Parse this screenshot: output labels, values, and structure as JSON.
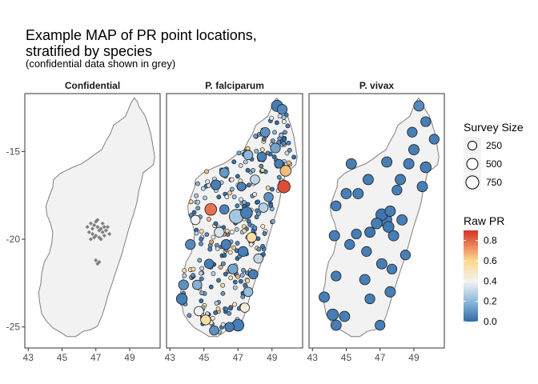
{
  "chart_data": {
    "type": "scatter",
    "title_lines": [
      "Example MAP of PR point locations,",
      "stratified by species"
    ],
    "subtitle": "(confidential data shown in grey)",
    "xlabel": "",
    "ylabel": "",
    "xlim": [
      42.8,
      50.8
    ],
    "ylim": [
      -26.2,
      -11.7
    ],
    "x_ticks": [
      43,
      45,
      47,
      49
    ],
    "x_tick_labels": [
      "43",
      "45",
      "47",
      "49"
    ],
    "y_ticks": [
      -15,
      -20,
      -25
    ],
    "y_tick_labels": [
      "-15",
      "-20",
      "-25"
    ],
    "grid": false,
    "panels": [
      {
        "label": "Confidential",
        "points": [
          [
            46.5,
            -19.3
          ],
          [
            46.7,
            -19.1
          ],
          [
            46.8,
            -19.4
          ],
          [
            46.9,
            -19.2
          ],
          [
            47.0,
            -19.0
          ],
          [
            47.1,
            -19.3
          ],
          [
            47.2,
            -19.5
          ],
          [
            47.3,
            -19.4
          ],
          [
            46.6,
            -19.6
          ],
          [
            46.8,
            -19.7
          ],
          [
            47.0,
            -19.8
          ],
          [
            47.2,
            -19.9
          ],
          [
            47.4,
            -19.6
          ],
          [
            47.5,
            -19.3
          ],
          [
            47.6,
            -19.5
          ],
          [
            47.1,
            -18.9
          ],
          [
            46.9,
            -19.9
          ],
          [
            47.3,
            -20.0
          ],
          [
            46.7,
            -20.0
          ],
          [
            47.5,
            -19.8
          ],
          [
            47.7,
            -19.3
          ],
          [
            47.4,
            -19.1
          ],
          [
            47.8,
            -19.7
          ],
          [
            47.0,
            -21.2
          ],
          [
            47.1,
            -21.4
          ],
          [
            47.2,
            -21.3
          ]
        ]
      },
      {
        "label": "P. falciparum",
        "points": [
          {
            "x": 46.9,
            "y": -18.7,
            "size": 800,
            "pr": 0.25
          },
          {
            "x": 47.5,
            "y": -18.5,
            "size": 500,
            "pr": 0.05
          },
          {
            "x": 49.7,
            "y": -17.0,
            "size": 600,
            "pr": 0.85
          },
          {
            "x": 45.4,
            "y": -18.3,
            "size": 500,
            "pr": 0.78
          },
          {
            "x": 49.8,
            "y": -16.1,
            "size": 400,
            "pr": 0.65
          },
          {
            "x": 47.8,
            "y": -19.9,
            "size": 300,
            "pr": 0.55
          },
          {
            "x": 49.3,
            "y": -12.4,
            "size": 450,
            "pr": 0.05
          },
          {
            "x": 49.6,
            "y": -12.6,
            "size": 300,
            "pr": 0.08
          },
          {
            "x": 48.6,
            "y": -13.9,
            "size": 250,
            "pr": 0.1
          },
          {
            "x": 49.2,
            "y": -14.8,
            "size": 300,
            "pr": 0.15
          },
          {
            "x": 48.4,
            "y": -15.3,
            "size": 250,
            "pr": 0.05
          },
          {
            "x": 47.6,
            "y": -15.2,
            "size": 250,
            "pr": 0.2
          },
          {
            "x": 48.0,
            "y": -16.6,
            "size": 250,
            "pr": 0.3
          },
          {
            "x": 47.2,
            "y": -17.0,
            "size": 200,
            "pr": 0.06
          },
          {
            "x": 46.2,
            "y": -16.2,
            "size": 250,
            "pr": 0.12
          },
          {
            "x": 45.7,
            "y": -16.9,
            "size": 300,
            "pr": 0.05
          },
          {
            "x": 44.5,
            "y": -18.9,
            "size": 250,
            "pr": 0.4
          },
          {
            "x": 44.2,
            "y": -20.3,
            "size": 300,
            "pr": 0.08
          },
          {
            "x": 43.8,
            "y": -22.6,
            "size": 300,
            "pr": 0.1
          },
          {
            "x": 43.7,
            "y": -23.4,
            "size": 400,
            "pr": 0.05
          },
          {
            "x": 44.6,
            "y": -22.6,
            "size": 250,
            "pr": 0.18
          },
          {
            "x": 44.7,
            "y": -24.1,
            "size": 250,
            "pr": 0.4
          },
          {
            "x": 45.1,
            "y": -24.6,
            "size": 300,
            "pr": 0.55
          },
          {
            "x": 45.6,
            "y": -25.2,
            "size": 250,
            "pr": 0.1
          },
          {
            "x": 46.5,
            "y": -25.0,
            "size": 250,
            "pr": 0.05
          },
          {
            "x": 47.0,
            "y": -24.9,
            "size": 500,
            "pr": 0.05
          },
          {
            "x": 47.6,
            "y": -23.0,
            "size": 250,
            "pr": 0.22
          },
          {
            "x": 47.9,
            "y": -22.0,
            "size": 250,
            "pr": 0.05
          },
          {
            "x": 48.2,
            "y": -21.1,
            "size": 250,
            "pr": 0.3
          },
          {
            "x": 46.3,
            "y": -20.3,
            "size": 300,
            "pr": 0.05
          },
          {
            "x": 45.9,
            "y": -19.6,
            "size": 300,
            "pr": 0.35
          },
          {
            "x": 46.2,
            "y": -18.3,
            "size": 250,
            "pr": 0.06
          },
          {
            "x": 48.5,
            "y": -18.2,
            "size": 250,
            "pr": 0.28
          },
          {
            "x": 48.8,
            "y": -17.6,
            "size": 250,
            "pr": 0.1
          },
          {
            "x": 49.4,
            "y": -15.7,
            "size": 200,
            "pr": 0.05
          },
          {
            "x": 46.7,
            "y": -21.7,
            "size": 300,
            "pr": 0.15
          },
          {
            "x": 45.3,
            "y": -21.4,
            "size": 250,
            "pr": 0.05
          },
          {
            "x": 47.3,
            "y": -20.7,
            "size": 300,
            "pr": 0.05
          },
          {
            "x": 47.4,
            "y": -23.9,
            "size": 250,
            "pr": 0.45
          }
        ],
        "small_points_count": 300
      },
      {
        "label": "P. vivax",
        "points": [
          {
            "x": 47.3,
            "y": -18.9,
            "size": 700,
            "pr": 0.05
          },
          {
            "x": 47.1,
            "y": -18.6,
            "size": 500,
            "pr": 0.03
          },
          {
            "x": 46.8,
            "y": -19.1,
            "size": 400,
            "pr": 0.05
          },
          {
            "x": 47.5,
            "y": -19.3,
            "size": 400,
            "pr": 0.04
          },
          {
            "x": 47.6,
            "y": -18.4,
            "size": 350,
            "pr": 0.05
          },
          {
            "x": 46.4,
            "y": -19.6,
            "size": 350,
            "pr": 0.03
          },
          {
            "x": 47.8,
            "y": -19.8,
            "size": 350,
            "pr": 0.05
          },
          {
            "x": 48.3,
            "y": -18.9,
            "size": 350,
            "pr": 0.05
          },
          {
            "x": 49.3,
            "y": -12.4,
            "size": 350,
            "pr": 0.08
          },
          {
            "x": 49.7,
            "y": -13.3,
            "size": 300,
            "pr": 0.05
          },
          {
            "x": 48.9,
            "y": -13.9,
            "size": 300,
            "pr": 0.05
          },
          {
            "x": 50.2,
            "y": -14.3,
            "size": 300,
            "pr": 0.05
          },
          {
            "x": 49.0,
            "y": -14.9,
            "size": 350,
            "pr": 0.05
          },
          {
            "x": 48.7,
            "y": -15.7,
            "size": 350,
            "pr": 0.05
          },
          {
            "x": 49.7,
            "y": -15.9,
            "size": 400,
            "pr": 0.05
          },
          {
            "x": 49.5,
            "y": -17.0,
            "size": 350,
            "pr": 0.05
          },
          {
            "x": 48.2,
            "y": -16.6,
            "size": 350,
            "pr": 0.05
          },
          {
            "x": 47.4,
            "y": -15.6,
            "size": 350,
            "pr": 0.05
          },
          {
            "x": 45.3,
            "y": -15.7,
            "size": 350,
            "pr": 0.05
          },
          {
            "x": 46.3,
            "y": -16.6,
            "size": 350,
            "pr": 0.05
          },
          {
            "x": 45.0,
            "y": -17.4,
            "size": 350,
            "pr": 0.05
          },
          {
            "x": 45.7,
            "y": -17.4,
            "size": 350,
            "pr": 0.05
          },
          {
            "x": 44.4,
            "y": -18.1,
            "size": 300,
            "pr": 0.05
          },
          {
            "x": 44.3,
            "y": -19.8,
            "size": 350,
            "pr": 0.05
          },
          {
            "x": 45.6,
            "y": -19.7,
            "size": 300,
            "pr": 0.05
          },
          {
            "x": 45.2,
            "y": -20.3,
            "size": 300,
            "pr": 0.05
          },
          {
            "x": 46.2,
            "y": -20.7,
            "size": 300,
            "pr": 0.05
          },
          {
            "x": 47.1,
            "y": -21.4,
            "size": 350,
            "pr": 0.05
          },
          {
            "x": 47.7,
            "y": -21.7,
            "size": 300,
            "pr": 0.05
          },
          {
            "x": 48.5,
            "y": -20.9,
            "size": 300,
            "pr": 0.05
          },
          {
            "x": 47.6,
            "y": -23.0,
            "size": 350,
            "pr": 0.05
          },
          {
            "x": 46.1,
            "y": -22.3,
            "size": 350,
            "pr": 0.05
          },
          {
            "x": 44.4,
            "y": -22.1,
            "size": 300,
            "pr": 0.05
          },
          {
            "x": 43.7,
            "y": -23.3,
            "size": 350,
            "pr": 0.05
          },
          {
            "x": 44.2,
            "y": -24.3,
            "size": 450,
            "pr": 0.05
          },
          {
            "x": 44.9,
            "y": -24.4,
            "size": 350,
            "pr": 0.05
          },
          {
            "x": 44.4,
            "y": -24.9,
            "size": 350,
            "pr": 0.05
          },
          {
            "x": 47.0,
            "y": -24.9,
            "size": 300,
            "pr": 0.05
          },
          {
            "x": 46.4,
            "y": -23.4,
            "size": 300,
            "pr": 0.05
          },
          {
            "x": 48.0,
            "y": -17.2,
            "size": 300,
            "pr": 0.05
          }
        ]
      }
    ],
    "legend": {
      "size_title": "Survey Size",
      "size_entries": [
        {
          "label": "250",
          "value": 250
        },
        {
          "label": "500",
          "value": 500
        },
        {
          "label": "750",
          "value": 750
        }
      ],
      "color_title": "Raw PR",
      "color_ticks": [
        "0.0",
        "0.2",
        "0.4",
        "0.6",
        "0.8"
      ],
      "color_tick_values": [
        0.0,
        0.2,
        0.4,
        0.6,
        0.8
      ],
      "color_range": [
        0,
        0.9
      ],
      "colors": {
        "low": "#2f6aa8",
        "mid_low": "#8db8db",
        "mid": "#f3f3f3",
        "mid_high": "#fdd78b",
        "high": "#d73027"
      }
    },
    "colors": {
      "panel_fill": "#f2f2f2",
      "map_outline": "#7f7f7f",
      "confidential_points": "#7f7f7f",
      "panel_border": "#333333",
      "point_stroke": "#1a1a1a"
    }
  }
}
